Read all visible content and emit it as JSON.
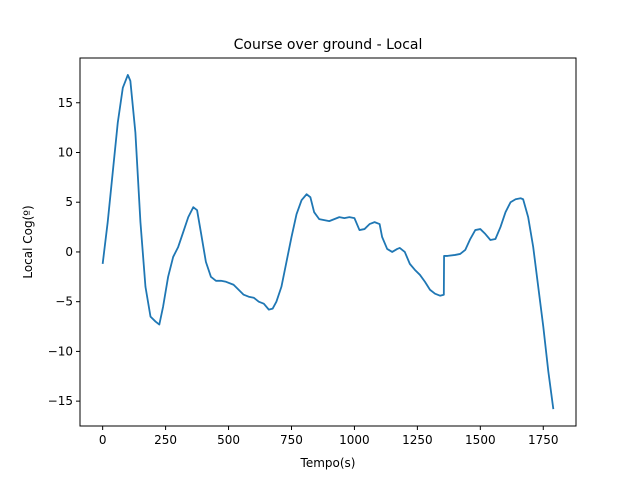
{
  "chart_data": {
    "type": "line",
    "title": "Course over ground - Local",
    "xlabel": "Tempo(s)",
    "ylabel": "Local Cog(º)",
    "xlim": [
      -90,
      1880
    ],
    "ylim": [
      -17.5,
      19.5
    ],
    "xticks": [
      0,
      250,
      500,
      750,
      1000,
      1250,
      1500,
      1750
    ],
    "yticks": [
      -15,
      -10,
      -5,
      0,
      5,
      10,
      15
    ],
    "grid": false,
    "series_color": "#1f77b4",
    "series": [
      {
        "x": [
          0,
          20,
          40,
          60,
          80,
          100,
          110,
          130,
          150,
          170,
          190,
          210,
          225,
          240,
          260,
          280,
          300,
          320,
          340,
          360,
          375,
          390,
          410,
          430,
          450,
          470,
          490,
          520,
          540,
          560,
          580,
          600,
          620,
          640,
          660,
          675,
          690,
          710,
          730,
          750,
          770,
          790,
          810,
          825,
          840,
          860,
          880,
          900,
          920,
          940,
          960,
          980,
          1000,
          1020,
          1040,
          1060,
          1080,
          1100,
          1110,
          1130,
          1150,
          1170,
          1180,
          1200,
          1220,
          1240,
          1260,
          1280,
          1300,
          1320,
          1340,
          1355,
          1356,
          1370,
          1400,
          1420,
          1440,
          1460,
          1480,
          1500,
          1520,
          1540,
          1560,
          1580,
          1600,
          1620,
          1640,
          1660,
          1670,
          1690,
          1710,
          1730,
          1750,
          1770,
          1790
        ],
        "y": [
          -1.2,
          3.0,
          8.0,
          13.0,
          16.5,
          17.8,
          17.2,
          12.0,
          3.0,
          -3.5,
          -6.5,
          -7.0,
          -7.3,
          -5.5,
          -2.5,
          -0.5,
          0.5,
          2.0,
          3.5,
          4.5,
          4.2,
          2.0,
          -1.0,
          -2.5,
          -2.9,
          -2.9,
          -3.0,
          -3.3,
          -3.8,
          -4.3,
          -4.5,
          -4.6,
          -5.0,
          -5.2,
          -5.8,
          -5.7,
          -5.0,
          -3.5,
          -1.0,
          1.5,
          3.8,
          5.2,
          5.8,
          5.5,
          4.0,
          3.3,
          3.2,
          3.1,
          3.3,
          3.5,
          3.4,
          3.5,
          3.4,
          2.2,
          2.3,
          2.8,
          3.0,
          2.8,
          1.5,
          0.3,
          0.0,
          0.3,
          0.4,
          0.0,
          -1.2,
          -1.8,
          -2.3,
          -3.0,
          -3.8,
          -4.2,
          -4.4,
          -4.3,
          -0.4,
          -0.4,
          -0.3,
          -0.2,
          0.2,
          1.3,
          2.2,
          2.3,
          1.8,
          1.2,
          1.3,
          2.5,
          4.0,
          5.0,
          5.3,
          5.4,
          5.3,
          3.5,
          0.5,
          -3.5,
          -7.5,
          -12.0,
          -15.8
        ]
      }
    ]
  }
}
